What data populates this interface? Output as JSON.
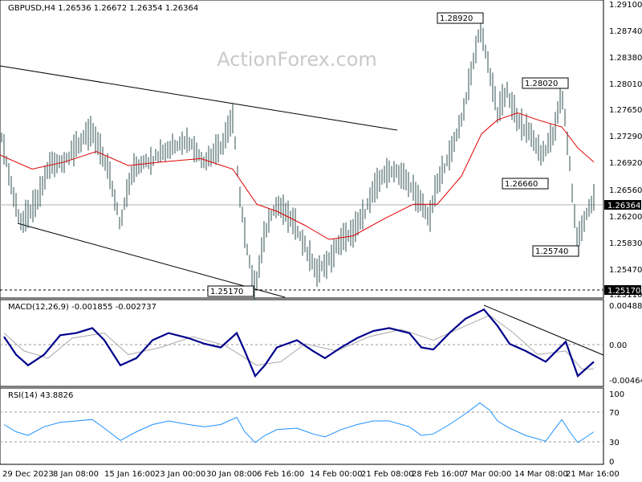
{
  "watermark": "ActionForex.com",
  "main_header": "GBPUSD,H4 1.26536 1.26672 1.26354 1.26364",
  "macd_header": "MACD(12,26,9) -0.001855 -0.002737",
  "rsi_header": "RSI(14) 43.8826",
  "x_tick_labels": [
    "29 Dec 2023",
    "8 Jan 08:00",
    "15 Jan 16:00",
    "23 Jan 00:00",
    "30 Jan 08:00",
    "6 Feb 16:00",
    "14 Feb 00:00",
    "21 Feb 08:00",
    "28 Feb 16:00",
    "7 Mar 00:00",
    "14 Mar 08:00",
    "21 Mar 16:00"
  ],
  "price_axis_labels": [
    "1.29100",
    "1.28740",
    "1.28380",
    "1.28010",
    "1.27650",
    "1.27290",
    "1.26920",
    "1.26560",
    "1.26200",
    "1.25830",
    "1.25470",
    "1.25110"
  ],
  "macd_axis_labels": [
    "0.004884",
    "0.00",
    "-0.004645"
  ],
  "rsi_axis_labels": [
    "100",
    "70",
    "30",
    "0"
  ],
  "current_price_label": "1.26364",
  "support_label": "1.25170",
  "annotations": [
    "1.28920",
    "1.28020",
    "1.26660",
    "1.25740",
    "1.25170"
  ],
  "colors": {
    "candles": "#2f4f4f",
    "sma": "#e00000",
    "macd": "#00008b",
    "signal": "#a9a9a9",
    "rsi": "#1e90ff",
    "grid": "#999999"
  },
  "chart_data": [
    {
      "type": "line",
      "title": "GBPUSD,H4",
      "series": [
        {
          "name": "GBPUSD",
          "points": [
            [
              0,
              1.2745
            ],
            [
              10,
              1.269
            ],
            [
              25,
              1.261
            ],
            [
              45,
              1.264
            ],
            [
              60,
              1.2695
            ],
            [
              80,
              1.27
            ],
            [
              100,
              1.273
            ],
            [
              115,
              1.2745
            ],
            [
              125,
              1.272
            ],
            [
              135,
              1.269
            ],
            [
              150,
              1.261
            ],
            [
              165,
              1.269
            ],
            [
              185,
              1.27
            ],
            [
              210,
              1.272
            ],
            [
              235,
              1.273
            ],
            [
              255,
              1.27
            ],
            [
              275,
              1.272
            ],
            [
              290,
              1.276
            ],
            [
              300,
              1.264
            ],
            [
              310,
              1.256
            ],
            [
              318,
              1.252
            ],
            [
              330,
              1.26
            ],
            [
              345,
              1.264
            ],
            [
              365,
              1.262
            ],
            [
              380,
              1.258
            ],
            [
              395,
              1.254
            ],
            [
              410,
              1.256
            ],
            [
              425,
              1.259
            ],
            [
              440,
              1.26
            ],
            [
              455,
              1.263
            ],
            [
              470,
              1.267
            ],
            [
              490,
              1.269
            ],
            [
              510,
              1.267
            ],
            [
              525,
              1.264
            ],
            [
              535,
              1.262
            ],
            [
              545,
              1.267
            ],
            [
              560,
              1.271
            ],
            [
              575,
              1.276
            ],
            [
              590,
              1.284
            ],
            [
              598,
              1.2892
            ],
            [
              608,
              1.284
            ],
            [
              620,
              1.277
            ],
            [
              632,
              1.28
            ],
            [
              645,
              1.276
            ],
            [
              660,
              1.274
            ],
            [
              675,
              1.271
            ],
            [
              690,
              1.274
            ],
            [
              700,
              1.28
            ],
            [
              708,
              1.272
            ],
            [
              715,
              1.263
            ],
            [
              720,
              1.259
            ],
            [
              730,
              1.262
            ],
            [
              740,
              1.265
            ]
          ]
        },
        {
          "name": "SMA",
          "points": [
            [
              0,
              1.271
            ],
            [
              40,
              1.269
            ],
            [
              80,
              1.27
            ],
            [
              120,
              1.2715
            ],
            [
              160,
              1.2695
            ],
            [
              200,
              1.27
            ],
            [
              250,
              1.2705
            ],
            [
              290,
              1.269
            ],
            [
              320,
              1.264
            ],
            [
              345,
              1.263
            ],
            [
              380,
              1.261
            ],
            [
              410,
              1.259
            ],
            [
              440,
              1.2595
            ],
            [
              480,
              1.262
            ],
            [
              515,
              1.264
            ],
            [
              545,
              1.264
            ],
            [
              575,
              1.268
            ],
            [
              600,
              1.274
            ],
            [
              620,
              1.276
            ],
            [
              645,
              1.277
            ],
            [
              670,
              1.276
            ],
            [
              700,
              1.275
            ],
            [
              720,
              1.272
            ],
            [
              740,
              1.27
            ]
          ]
        }
      ],
      "annotations": [
        {
          "label": "1.28920",
          "x": 598,
          "y": 1.2892
        },
        {
          "label": "1.28020",
          "x": 700,
          "y": 1.2802
        },
        {
          "label": "1.26660",
          "x": 680,
          "y": 1.2666
        },
        {
          "label": "1.25740",
          "x": 718,
          "y": 1.2574
        },
        {
          "label": "1.25170",
          "x": 315,
          "y": 1.2517
        }
      ],
      "ylim": [
        1.251,
        1.291
      ]
    },
    {
      "type": "line",
      "title": "MACD(12,26,9)",
      "series": [
        {
          "name": "MACD",
          "points": [
            [
              5,
              0.001
            ],
            [
              20,
              -0.0015
            ],
            [
              35,
              -0.003
            ],
            [
              55,
              -0.0015
            ],
            [
              75,
              0.0012
            ],
            [
              95,
              0.0015
            ],
            [
              115,
              0.0022
            ],
            [
              130,
              0.0005
            ],
            [
              150,
              -0.003
            ],
            [
              170,
              -0.002
            ],
            [
              190,
              0.0005
            ],
            [
              210,
              0.0015
            ],
            [
              235,
              0.0008
            ],
            [
              255,
              0.0
            ],
            [
              275,
              -0.0005
            ],
            [
              295,
              0.0015
            ],
            [
              305,
              -0.001
            ],
            [
              318,
              -0.0045
            ],
            [
              330,
              -0.003
            ],
            [
              345,
              -0.0005
            ],
            [
              370,
              0.0005
            ],
            [
              390,
              -0.001
            ],
            [
              405,
              -0.002
            ],
            [
              425,
              -0.0005
            ],
            [
              445,
              0.0008
            ],
            [
              465,
              0.0018
            ],
            [
              485,
              0.0022
            ],
            [
              510,
              0.0015
            ],
            [
              525,
              -0.0005
            ],
            [
              540,
              -0.0008
            ],
            [
              560,
              0.0015
            ],
            [
              580,
              0.0035
            ],
            [
              603,
              0.0048
            ],
            [
              620,
              0.0025
            ],
            [
              635,
              0.0
            ],
            [
              655,
              -0.001
            ],
            [
              680,
              -0.0025
            ],
            [
              705,
              0.0003
            ],
            [
              720,
              -0.0045
            ],
            [
              740,
              -0.0025
            ]
          ]
        },
        {
          "name": "Signal",
          "points": [
            [
              5,
              0.0015
            ],
            [
              30,
              -0.001
            ],
            [
              60,
              -0.002
            ],
            [
              90,
              0.0008
            ],
            [
              130,
              0.0015
            ],
            [
              160,
              -0.0015
            ],
            [
              200,
              -0.0005
            ],
            [
              240,
              0.001
            ],
            [
              280,
              -0.0002
            ],
            [
              320,
              -0.003
            ],
            [
              350,
              -0.0025
            ],
            [
              380,
              0.0
            ],
            [
              420,
              -0.001
            ],
            [
              460,
              0.001
            ],
            [
              500,
              0.002
            ],
            [
              540,
              0.0005
            ],
            [
              580,
              0.0025
            ],
            [
              610,
              0.004
            ],
            [
              640,
              0.0015
            ],
            [
              670,
              -0.0015
            ],
            [
              705,
              -0.001
            ],
            [
              725,
              -0.0035
            ],
            [
              740,
              -0.0035
            ]
          ]
        }
      ],
      "ylim": [
        -0.0055,
        0.0055
      ]
    },
    {
      "type": "line",
      "title": "RSI(14)",
      "series": [
        {
          "name": "RSI",
          "points": [
            [
              5,
              55
            ],
            [
              20,
              45
            ],
            [
              35,
              40
            ],
            [
              55,
              52
            ],
            [
              75,
              58
            ],
            [
              95,
              60
            ],
            [
              115,
              62
            ],
            [
              130,
              50
            ],
            [
              150,
              33
            ],
            [
              170,
              45
            ],
            [
              190,
              55
            ],
            [
              210,
              60
            ],
            [
              235,
              55
            ],
            [
              255,
              52
            ],
            [
              275,
              55
            ],
            [
              295,
              65
            ],
            [
              305,
              45
            ],
            [
              318,
              30
            ],
            [
              330,
              40
            ],
            [
              345,
              48
            ],
            [
              370,
              50
            ],
            [
              390,
              42
            ],
            [
              405,
              38
            ],
            [
              425,
              48
            ],
            [
              445,
              55
            ],
            [
              465,
              60
            ],
            [
              485,
              60
            ],
            [
              510,
              52
            ],
            [
              525,
              40
            ],
            [
              540,
              42
            ],
            [
              560,
              55
            ],
            [
              580,
              70
            ],
            [
              598,
              85
            ],
            [
              610,
              75
            ],
            [
              620,
              60
            ],
            [
              635,
              50
            ],
            [
              655,
              40
            ],
            [
              680,
              32
            ],
            [
              700,
              62
            ],
            [
              710,
              45
            ],
            [
              720,
              30
            ],
            [
              740,
              45
            ]
          ]
        }
      ],
      "ylim": [
        0,
        100
      ]
    }
  ]
}
